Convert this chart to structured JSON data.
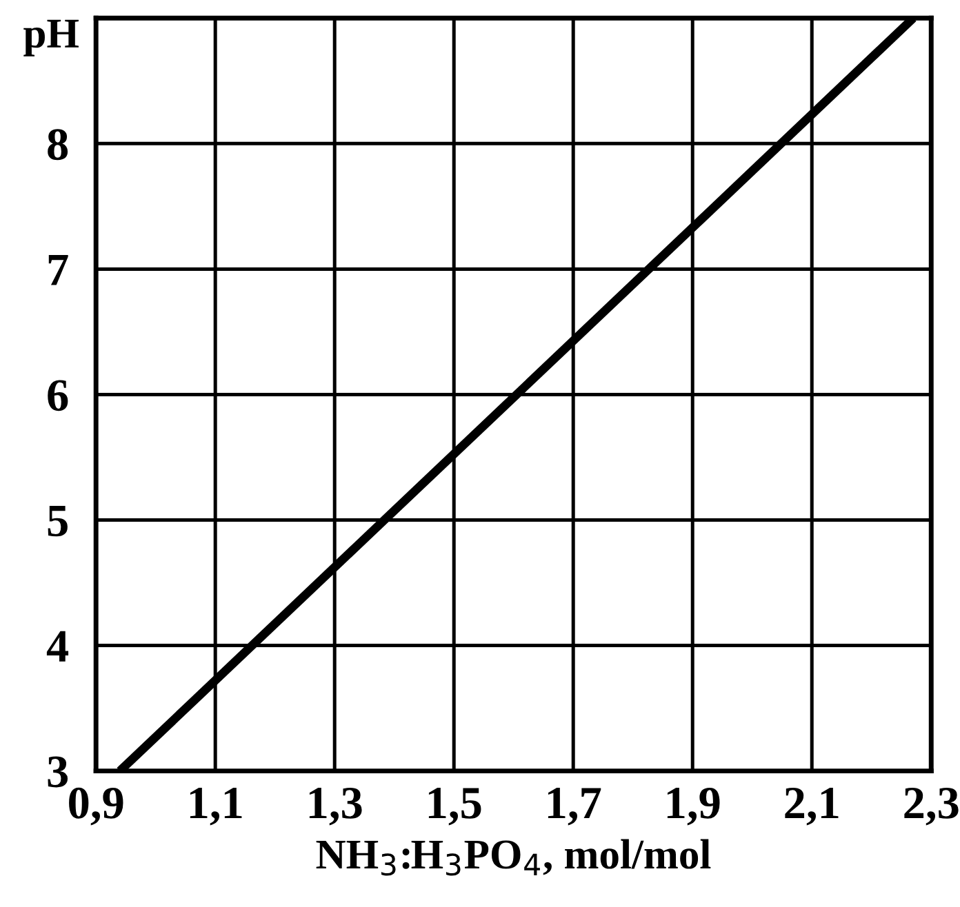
{
  "chart_data": {
    "type": "line",
    "xlabel": "NH$_{3}$:H$_{3}$PO$_{4}$, mol/mol",
    "ylabel": "pH",
    "x": [
      0.94,
      2.27
    ],
    "series": [
      {
        "color": "#000000",
        "values": [
          3,
          9
        ]
      }
    ],
    "xlim": [
      0.9,
      2.3
    ],
    "ylim": [
      3,
      9
    ],
    "xticks": [
      {
        "value": 0.9,
        "label": "0,9"
      },
      {
        "value": 1.1,
        "label": "1,1"
      },
      {
        "value": 1.3,
        "label": "1,3"
      },
      {
        "value": 1.5,
        "label": "1,5"
      },
      {
        "value": 1.7,
        "label": "1,7"
      },
      {
        "value": 1.9,
        "label": "1,9"
      },
      {
        "value": 2.1,
        "label": "2,1"
      },
      {
        "value": 2.3,
        "label": "2,3"
      }
    ],
    "yticks": [
      3,
      4,
      5,
      6,
      7,
      8
    ],
    "grid": true,
    "marker": "none",
    "line_style": "solid",
    "legend": false
  }
}
